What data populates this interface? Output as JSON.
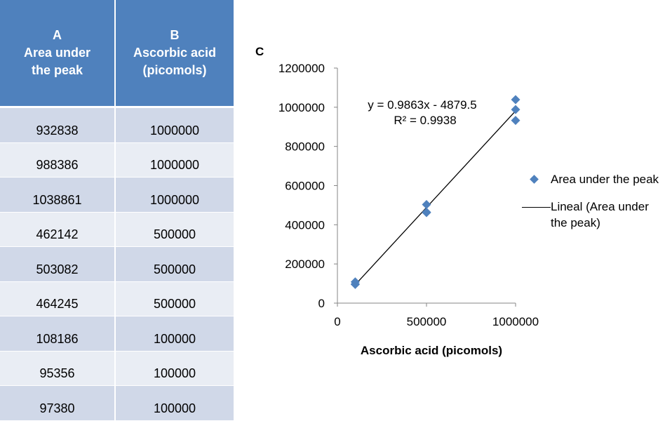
{
  "table": {
    "headers": [
      {
        "letter": "A",
        "line1": "Area under",
        "line2": "the peak"
      },
      {
        "letter": "B",
        "line1": "Ascorbic acid",
        "line2": "(picomols)"
      }
    ],
    "rows": [
      {
        "a": "932838",
        "b": "1000000"
      },
      {
        "a": "988386",
        "b": "1000000"
      },
      {
        "a": "1038861",
        "b": "1000000"
      },
      {
        "a": "462142",
        "b": "500000"
      },
      {
        "a": "503082",
        "b": "500000"
      },
      {
        "a": "464245",
        "b": "500000"
      },
      {
        "a": "108186",
        "b": "100000"
      },
      {
        "a": "95356",
        "b": "100000"
      },
      {
        "a": "97380",
        "b": "100000"
      }
    ]
  },
  "panel_label": "C",
  "chart_data": {
    "type": "scatter",
    "title": "",
    "xlabel": "Ascorbic acid (picomols)",
    "ylabel": "",
    "xlim": [
      0,
      1000000
    ],
    "ylim": [
      0,
      1200000
    ],
    "x_ticks": [
      0,
      500000,
      1000000
    ],
    "y_ticks": [
      0,
      200000,
      400000,
      600000,
      800000,
      1000000,
      1200000
    ],
    "x_tick_labels": [
      "0",
      "500000",
      "1000000"
    ],
    "y_tick_labels": [
      "0",
      "200000",
      "400000",
      "600000",
      "800000",
      "1000000",
      "1200000"
    ],
    "grid": false,
    "legend_position": "right",
    "series": [
      {
        "name": "Area under the peak",
        "marker": "diamond",
        "color": "#4f81bd",
        "x": [
          1000000,
          1000000,
          1000000,
          500000,
          500000,
          500000,
          100000,
          100000,
          100000
        ],
        "y": [
          932838,
          988386,
          1038861,
          462142,
          503082,
          464245,
          108186,
          95356,
          97380
        ]
      }
    ],
    "trendline": {
      "name": "Lineal (Area under the peak)",
      "color": "#000000",
      "slope": 0.9863,
      "intercept": -4879.5,
      "x_range": [
        100000,
        1000000
      ],
      "equation_label": "y = 0.9863x - 4879.5",
      "r2_label": "R² = 0.9938"
    }
  }
}
